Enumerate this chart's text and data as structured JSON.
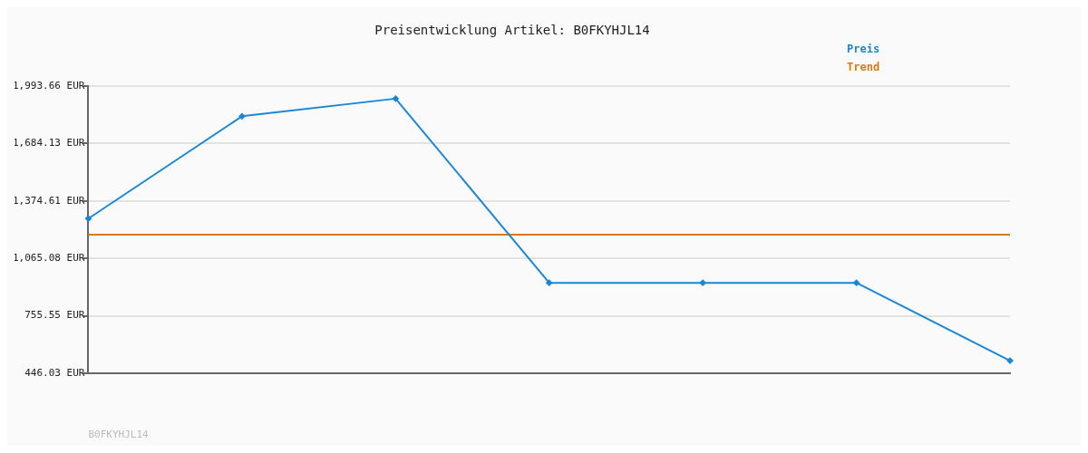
{
  "chart_data": {
    "type": "line",
    "title": "Preisentwicklung Artikel: B0FKYHJL14",
    "categories": [
      null,
      null,
      null,
      null,
      null,
      null,
      null
    ],
    "series": [
      {
        "name": "Preis",
        "color": "#1a87d5",
        "values": [
          1279,
          1830,
          1925,
          933,
          933,
          933,
          514
        ],
        "marker": "diamond"
      },
      {
        "name": "Trend",
        "color": "#d97a0b",
        "values": [
          1193,
          1193,
          1193,
          1193,
          1193,
          1193,
          1193
        ],
        "marker": "none"
      }
    ],
    "ylim": [
      446.03,
      1993.66
    ],
    "yticks": [
      {
        "value": 446.03,
        "label": "446.03 EUR"
      },
      {
        "value": 755.55,
        "label": "755.55 EUR"
      },
      {
        "value": 1065.08,
        "label": "1,065.08 EUR"
      },
      {
        "value": 1374.61,
        "label": "1,374.61 EUR"
      },
      {
        "value": 1684.13,
        "label": "1,684.13 EUR"
      },
      {
        "value": 1993.66,
        "label": "1,993.66 EUR"
      }
    ],
    "grid": "y",
    "legend": "top right",
    "tick_labels": "y",
    "annotations": [
      "B0FKYHJL14"
    ]
  }
}
